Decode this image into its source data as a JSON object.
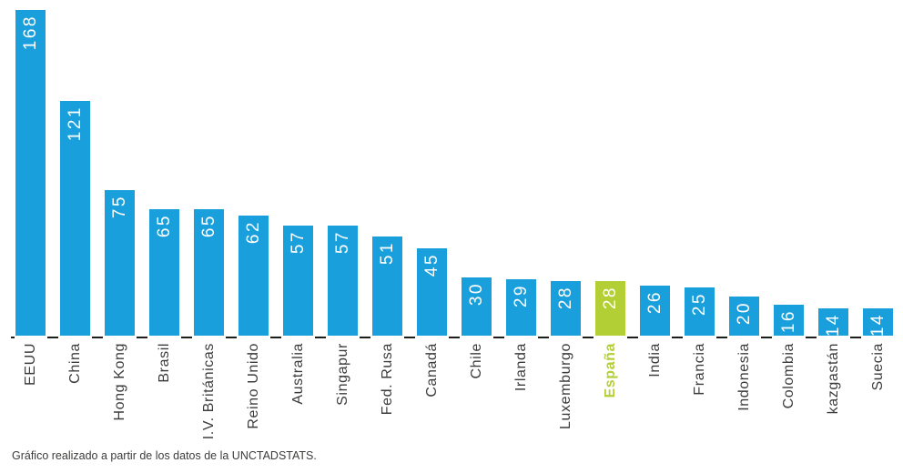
{
  "chart_data": {
    "type": "bar",
    "title": "",
    "categories": [
      "EEUU",
      "China",
      "Hong Kong",
      "Brasil",
      "I.V. Británicas",
      "Reino Unido",
      "Australia",
      "Singapur",
      "Fed. Rusa",
      "Canadá",
      "Chile",
      "Irlanda",
      "Luxemburgo",
      "España",
      "India",
      "Francia",
      "Indonesia",
      "Colombia",
      "kazgastán",
      "Suecia"
    ],
    "values": [
      168,
      121,
      75,
      65,
      65,
      62,
      57,
      57,
      51,
      45,
      30,
      29,
      28,
      28,
      26,
      25,
      20,
      16,
      14,
      14
    ],
    "highlight_category": "España",
    "highlight_index": 13,
    "ylim": [
      0,
      168
    ],
    "grid": false,
    "legend_position": "none",
    "value_labels": "inside-top-rotated",
    "category_labels": "rotated-90",
    "colors": {
      "bar": "#199fdb",
      "highlight_bar": "#b2cf35",
      "value_text": "#ffffff",
      "category_text": "#3c3c3b",
      "highlight_category_text": "#b2cf35",
      "axis_tick": "#1d1d1b",
      "background": "#ffffff"
    }
  },
  "footer": {
    "note": "Gráfico realizado a partir de los datos de la UNCTADSTATS."
  }
}
